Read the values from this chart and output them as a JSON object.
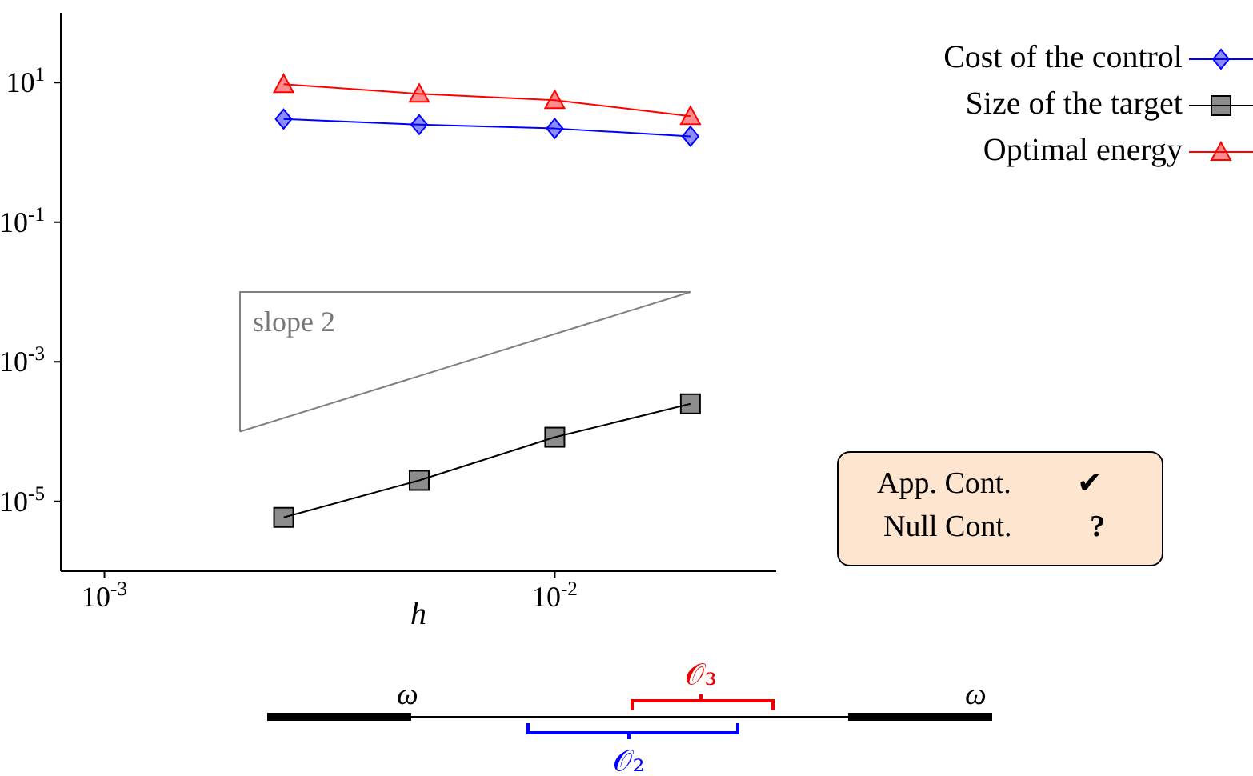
{
  "chart_data": {
    "type": "line",
    "xlabel": "h",
    "log": "xy",
    "xlim": [
      0.0008,
      0.031
    ],
    "ylim": [
      1e-06,
      100
    ],
    "xticks": [
      {
        "value": 0.001,
        "label": "10$^{-3}$"
      },
      {
        "value": 0.01,
        "label": "10$^{-2}$"
      }
    ],
    "yticks": [
      {
        "value": 1e-05,
        "label": "10$^{-5}$"
      },
      {
        "value": 0.001,
        "label": "10$^{-3}$"
      },
      {
        "value": 0.1,
        "label": "10$^{-1}$"
      },
      {
        "value": 10,
        "label": "10$^{1}$"
      }
    ],
    "grid": false,
    "legend": "top right",
    "series": [
      {
        "name": "Cost of the control",
        "color": "#0000ff",
        "marker": "diamond",
        "x": [
          0.0025,
          0.005,
          0.01,
          0.02
        ],
        "values": [
          3.0,
          2.5,
          2.2,
          1.7
        ]
      },
      {
        "name": "Size of the target",
        "color": "#000000",
        "marker": "square",
        "x": [
          0.0025,
          0.005,
          0.01,
          0.02
        ],
        "values": [
          5.9e-06,
          2e-05,
          8.3e-05,
          0.00025
        ]
      },
      {
        "name": "Optimal energy",
        "color": "#ff0000",
        "marker": "triangle",
        "x": [
          0.0025,
          0.005,
          0.01,
          0.02
        ],
        "values": [
          9.5,
          6.9,
          5.6,
          3.3
        ]
      },
      {
        "color": "#808080",
        "marker": "none",
        "x": [
          0.002,
          0.002,
          0.02
        ],
        "values": [
          0.0001,
          0.01,
          0.01
        ]
      },
      {
        "color": "#808080",
        "marker": "none",
        "x": [
          0.002,
          0.02
        ],
        "values": [
          0.0001,
          0.01
        ]
      }
    ],
    "annotations": [
      "slope 2",
      "App. Cont.",
      "✔",
      "Null Cont.",
      "?",
      "ω",
      "ω",
      "𝒪₃",
      "𝒪₂"
    ]
  }
}
